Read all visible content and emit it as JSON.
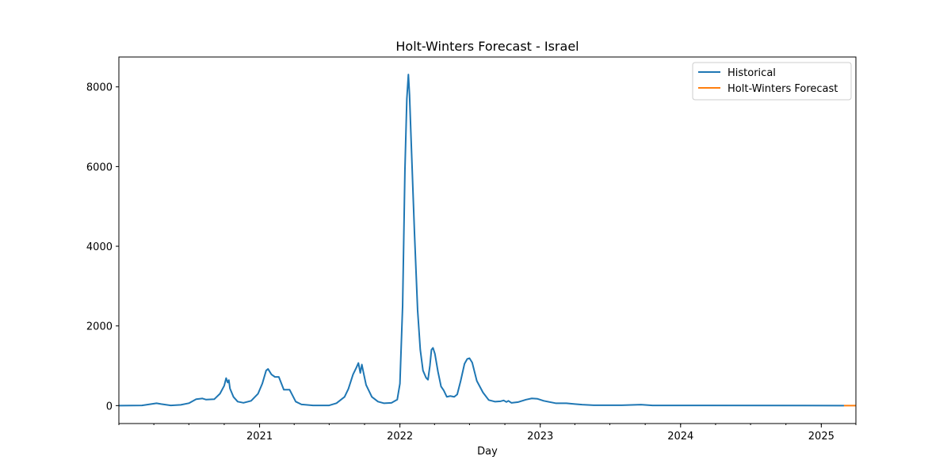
{
  "chart_data": {
    "type": "line",
    "title": "Holt-Winters Forecast - Israel",
    "xlabel": "Day",
    "ylabel": "",
    "x_range": [
      "2020-01-01",
      "2025-04-01"
    ],
    "ylim": [
      -450,
      8750
    ],
    "y_ticks": [
      0,
      2000,
      4000,
      6000,
      8000
    ],
    "x_ticks": [
      {
        "date": "2021-01-01",
        "label": "2021"
      },
      {
        "date": "2022-01-01",
        "label": "2022"
      },
      {
        "date": "2023-01-01",
        "label": "2023"
      },
      {
        "date": "2024-01-01",
        "label": "2024"
      },
      {
        "date": "2025-01-01",
        "label": "2025"
      }
    ],
    "grid": false,
    "legend_position": "top-right",
    "series": [
      {
        "name": "Historical",
        "color": "#1f77b4",
        "points": [
          [
            "2020-01-01",
            0
          ],
          [
            "2020-03-01",
            5
          ],
          [
            "2020-04-08",
            60
          ],
          [
            "2020-04-20",
            40
          ],
          [
            "2020-05-15",
            5
          ],
          [
            "2020-06-10",
            20
          ],
          [
            "2020-07-01",
            60
          ],
          [
            "2020-07-20",
            160
          ],
          [
            "2020-08-05",
            180
          ],
          [
            "2020-08-15",
            150
          ],
          [
            "2020-09-05",
            160
          ],
          [
            "2020-09-20",
            300
          ],
          [
            "2020-10-01",
            500
          ],
          [
            "2020-10-06",
            690
          ],
          [
            "2020-10-10",
            580
          ],
          [
            "2020-10-13",
            640
          ],
          [
            "2020-10-16",
            430
          ],
          [
            "2020-10-25",
            220
          ],
          [
            "2020-11-05",
            100
          ],
          [
            "2020-11-20",
            70
          ],
          [
            "2020-12-10",
            120
          ],
          [
            "2020-12-28",
            300
          ],
          [
            "2021-01-08",
            550
          ],
          [
            "2021-01-18",
            880
          ],
          [
            "2021-01-23",
            920
          ],
          [
            "2021-02-01",
            780
          ],
          [
            "2021-02-10",
            720
          ],
          [
            "2021-02-20",
            720
          ],
          [
            "2021-03-05",
            400
          ],
          [
            "2021-03-20",
            400
          ],
          [
            "2021-04-05",
            100
          ],
          [
            "2021-04-20",
            30
          ],
          [
            "2021-05-20",
            5
          ],
          [
            "2021-07-01",
            5
          ],
          [
            "2021-07-20",
            60
          ],
          [
            "2021-08-10",
            220
          ],
          [
            "2021-08-20",
            420
          ],
          [
            "2021-09-01",
            780
          ],
          [
            "2021-09-10",
            960
          ],
          [
            "2021-09-15",
            1070
          ],
          [
            "2021-09-20",
            820
          ],
          [
            "2021-09-24",
            1030
          ],
          [
            "2021-09-28",
            840
          ],
          [
            "2021-10-05",
            520
          ],
          [
            "2021-10-20",
            220
          ],
          [
            "2021-11-05",
            100
          ],
          [
            "2021-11-20",
            60
          ],
          [
            "2021-12-10",
            70
          ],
          [
            "2021-12-25",
            150
          ],
          [
            "2022-01-01",
            550
          ],
          [
            "2022-01-08",
            2500
          ],
          [
            "2022-01-14",
            5900
          ],
          [
            "2022-01-19",
            7700
          ],
          [
            "2022-01-23",
            8310
          ],
          [
            "2022-01-26",
            7800
          ],
          [
            "2022-01-30",
            6700
          ],
          [
            "2022-02-08",
            4300
          ],
          [
            "2022-02-16",
            2400
          ],
          [
            "2022-02-23",
            1400
          ],
          [
            "2022-03-02",
            880
          ],
          [
            "2022-03-10",
            700
          ],
          [
            "2022-03-15",
            650
          ],
          [
            "2022-03-20",
            1000
          ],
          [
            "2022-03-24",
            1400
          ],
          [
            "2022-03-28",
            1450
          ],
          [
            "2022-04-02",
            1300
          ],
          [
            "2022-04-10",
            850
          ],
          [
            "2022-04-18",
            480
          ],
          [
            "2022-04-25",
            380
          ],
          [
            "2022-05-03",
            220
          ],
          [
            "2022-05-12",
            240
          ],
          [
            "2022-05-22",
            220
          ],
          [
            "2022-05-30",
            280
          ],
          [
            "2022-06-08",
            620
          ],
          [
            "2022-06-18",
            1050
          ],
          [
            "2022-06-25",
            1170
          ],
          [
            "2022-07-01",
            1190
          ],
          [
            "2022-07-08",
            1080
          ],
          [
            "2022-07-20",
            620
          ],
          [
            "2022-08-05",
            330
          ],
          [
            "2022-08-20",
            140
          ],
          [
            "2022-09-05",
            100
          ],
          [
            "2022-09-20",
            110
          ],
          [
            "2022-09-28",
            130
          ],
          [
            "2022-10-05",
            90
          ],
          [
            "2022-10-10",
            120
          ],
          [
            "2022-10-18",
            70
          ],
          [
            "2022-11-05",
            90
          ],
          [
            "2022-11-25",
            150
          ],
          [
            "2022-12-10",
            180
          ],
          [
            "2022-12-25",
            170
          ],
          [
            "2023-01-10",
            120
          ],
          [
            "2023-02-10",
            60
          ],
          [
            "2023-03-10",
            60
          ],
          [
            "2023-04-01",
            40
          ],
          [
            "2023-04-20",
            25
          ],
          [
            "2023-05-20",
            10
          ],
          [
            "2023-08-01",
            10
          ],
          [
            "2023-09-20",
            25
          ],
          [
            "2023-10-20",
            5
          ],
          [
            "2025-03-01",
            0
          ]
        ]
      },
      {
        "name": "Holt-Winters Forecast",
        "color": "#ff7f0e",
        "points": [
          [
            "2025-03-01",
            0
          ],
          [
            "2025-04-01",
            0
          ]
        ]
      }
    ]
  }
}
